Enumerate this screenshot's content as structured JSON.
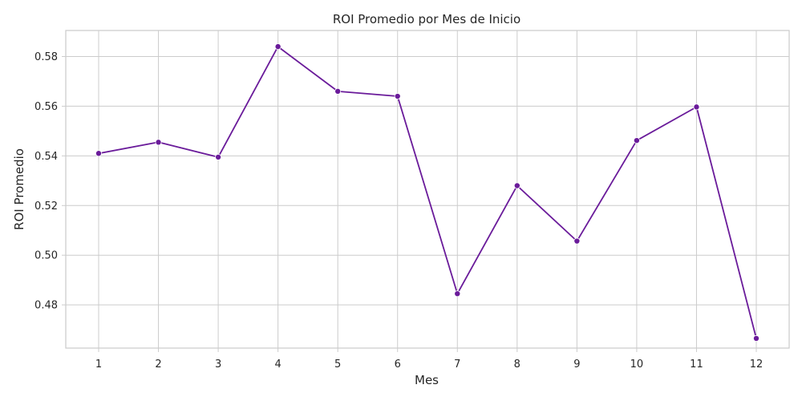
{
  "chart_data": {
    "type": "line",
    "title": "ROI Promedio por Mes de Inicio",
    "xlabel": "Mes",
    "ylabel": "ROI Promedio",
    "x": [
      1,
      2,
      3,
      4,
      5,
      6,
      7,
      8,
      9,
      10,
      11,
      12
    ],
    "y": [
      0.541,
      0.5455,
      0.5395,
      0.584,
      0.566,
      0.564,
      0.4845,
      0.528,
      0.5057,
      0.5462,
      0.5597,
      0.4665
    ],
    "xticks": [
      "1",
      "2",
      "3",
      "4",
      "5",
      "6",
      "7",
      "8",
      "9",
      "10",
      "11",
      "12"
    ],
    "yticks": [
      "0.48",
      "0.50",
      "0.52",
      "0.54",
      "0.56",
      "0.58"
    ],
    "xlim": [
      0.45,
      12.55
    ],
    "ylim": [
      0.4626,
      0.5905
    ],
    "grid": true,
    "line_color": "#6a1b9a"
  }
}
